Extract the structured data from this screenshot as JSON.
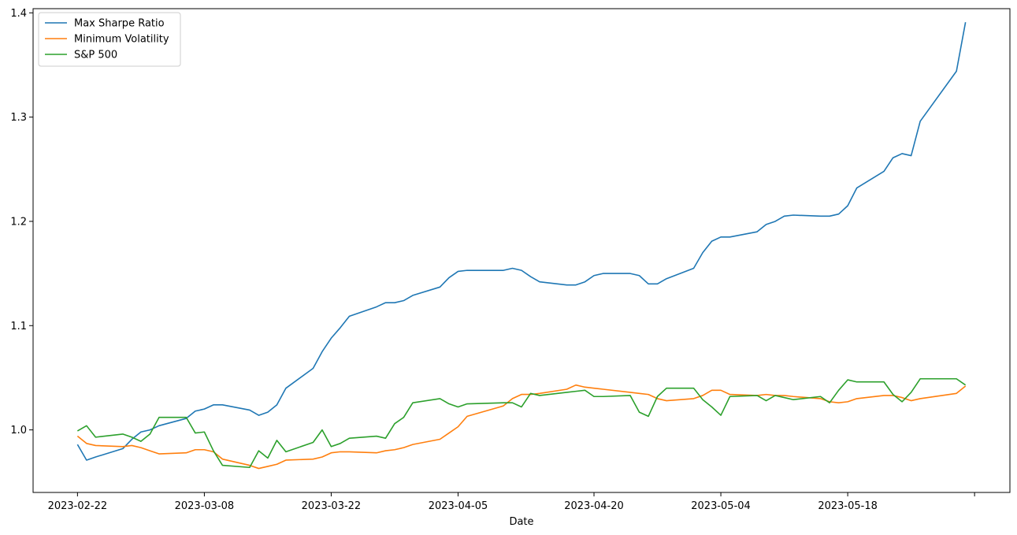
{
  "chart_data": {
    "type": "line",
    "title": "",
    "xlabel": "Date",
    "ylabel": "",
    "x": [
      "2023-02-22",
      "2023-02-23",
      "2023-02-24",
      "2023-02-27",
      "2023-02-28",
      "2023-03-01",
      "2023-03-02",
      "2023-03-03",
      "2023-03-06",
      "2023-03-07",
      "2023-03-08",
      "2023-03-09",
      "2023-03-10",
      "2023-03-13",
      "2023-03-14",
      "2023-03-15",
      "2023-03-16",
      "2023-03-17",
      "2023-03-20",
      "2023-03-21",
      "2023-03-22",
      "2023-03-23",
      "2023-03-24",
      "2023-03-27",
      "2023-03-28",
      "2023-03-29",
      "2023-03-30",
      "2023-03-31",
      "2023-04-03",
      "2023-04-04",
      "2023-04-05",
      "2023-04-06",
      "2023-04-10",
      "2023-04-11",
      "2023-04-12",
      "2023-04-13",
      "2023-04-14",
      "2023-04-17",
      "2023-04-18",
      "2023-04-19",
      "2023-04-20",
      "2023-04-21",
      "2023-04-24",
      "2023-04-25",
      "2023-04-26",
      "2023-04-27",
      "2023-04-28",
      "2023-05-01",
      "2023-05-02",
      "2023-05-03",
      "2023-05-04",
      "2023-05-05",
      "2023-05-08",
      "2023-05-09",
      "2023-05-10",
      "2023-05-11",
      "2023-05-12",
      "2023-05-15",
      "2023-05-16",
      "2023-05-17",
      "2023-05-18",
      "2023-05-19",
      "2023-05-22",
      "2023-05-23",
      "2023-05-24",
      "2023-05-25",
      "2023-05-26",
      "2023-05-30",
      "2023-05-31"
    ],
    "series": [
      {
        "name": "Max Sharpe Ratio",
        "color": "#1f77b4",
        "values": [
          0.986,
          0.971,
          0.974,
          0.982,
          0.991,
          0.998,
          1.0,
          1.004,
          1.011,
          1.018,
          1.02,
          1.024,
          1.024,
          1.019,
          1.014,
          1.017,
          1.024,
          1.04,
          1.059,
          1.075,
          1.088,
          1.098,
          1.109,
          1.118,
          1.122,
          1.122,
          1.124,
          1.129,
          1.137,
          1.146,
          1.152,
          1.153,
          1.153,
          1.155,
          1.153,
          1.147,
          1.142,
          1.139,
          1.139,
          1.142,
          1.148,
          1.15,
          1.15,
          1.148,
          1.14,
          1.14,
          1.145,
          1.155,
          1.17,
          1.181,
          1.185,
          1.185,
          1.19,
          1.197,
          1.2,
          1.205,
          1.206,
          1.205,
          1.205,
          1.207,
          1.215,
          1.232,
          1.248,
          1.261,
          1.265,
          1.263,
          1.296,
          1.344,
          1.391
        ]
      },
      {
        "name": "Minimum Volatility",
        "color": "#ff7f0e",
        "values": [
          0.994,
          0.987,
          0.985,
          0.984,
          0.985,
          0.983,
          0.98,
          0.977,
          0.978,
          0.981,
          0.981,
          0.979,
          0.972,
          0.966,
          0.963,
          0.965,
          0.967,
          0.971,
          0.972,
          0.974,
          0.978,
          0.979,
          0.979,
          0.978,
          0.98,
          0.981,
          0.983,
          0.986,
          0.991,
          0.997,
          1.003,
          1.013,
          1.023,
          1.03,
          1.034,
          1.034,
          1.035,
          1.039,
          1.043,
          1.041,
          1.04,
          1.039,
          1.036,
          1.035,
          1.034,
          1.03,
          1.028,
          1.03,
          1.033,
          1.038,
          1.038,
          1.034,
          1.033,
          1.034,
          1.033,
          1.033,
          1.032,
          1.03,
          1.027,
          1.026,
          1.027,
          1.03,
          1.033,
          1.033,
          1.031,
          1.028,
          1.03,
          1.035,
          1.042
        ]
      },
      {
        "name": "S&P 500",
        "color": "#2ca02c",
        "values": [
          0.999,
          1.004,
          0.993,
          0.996,
          0.993,
          0.989,
          0.996,
          1.012,
          1.012,
          0.997,
          0.998,
          0.98,
          0.966,
          0.964,
          0.98,
          0.973,
          0.99,
          0.979,
          0.988,
          1.0,
          0.984,
          0.987,
          0.992,
          0.994,
          0.992,
          1.006,
          1.012,
          1.026,
          1.03,
          1.025,
          1.022,
          1.025,
          1.026,
          1.026,
          1.022,
          1.035,
          1.033,
          1.036,
          1.037,
          1.038,
          1.032,
          1.032,
          1.033,
          1.017,
          1.013,
          1.032,
          1.04,
          1.04,
          1.029,
          1.022,
          1.014,
          1.032,
          1.033,
          1.028,
          1.033,
          1.031,
          1.029,
          1.032,
          1.026,
          1.038,
          1.048,
          1.046,
          1.046,
          1.034,
          1.027,
          1.036,
          1.049,
          1.049,
          1.043
        ]
      }
    ],
    "xticks": [
      "2023-02-22",
      "2023-03-08",
      "2023-03-22",
      "2023-04-05",
      "2023-04-20",
      "2023-05-04",
      "2023-05-18"
    ],
    "yticks": [
      "1.0",
      "1.1",
      "1.2",
      "1.3",
      "1.4"
    ],
    "ylim": [
      0.94,
      1.404
    ],
    "legend": "upper-left",
    "grid": false
  }
}
